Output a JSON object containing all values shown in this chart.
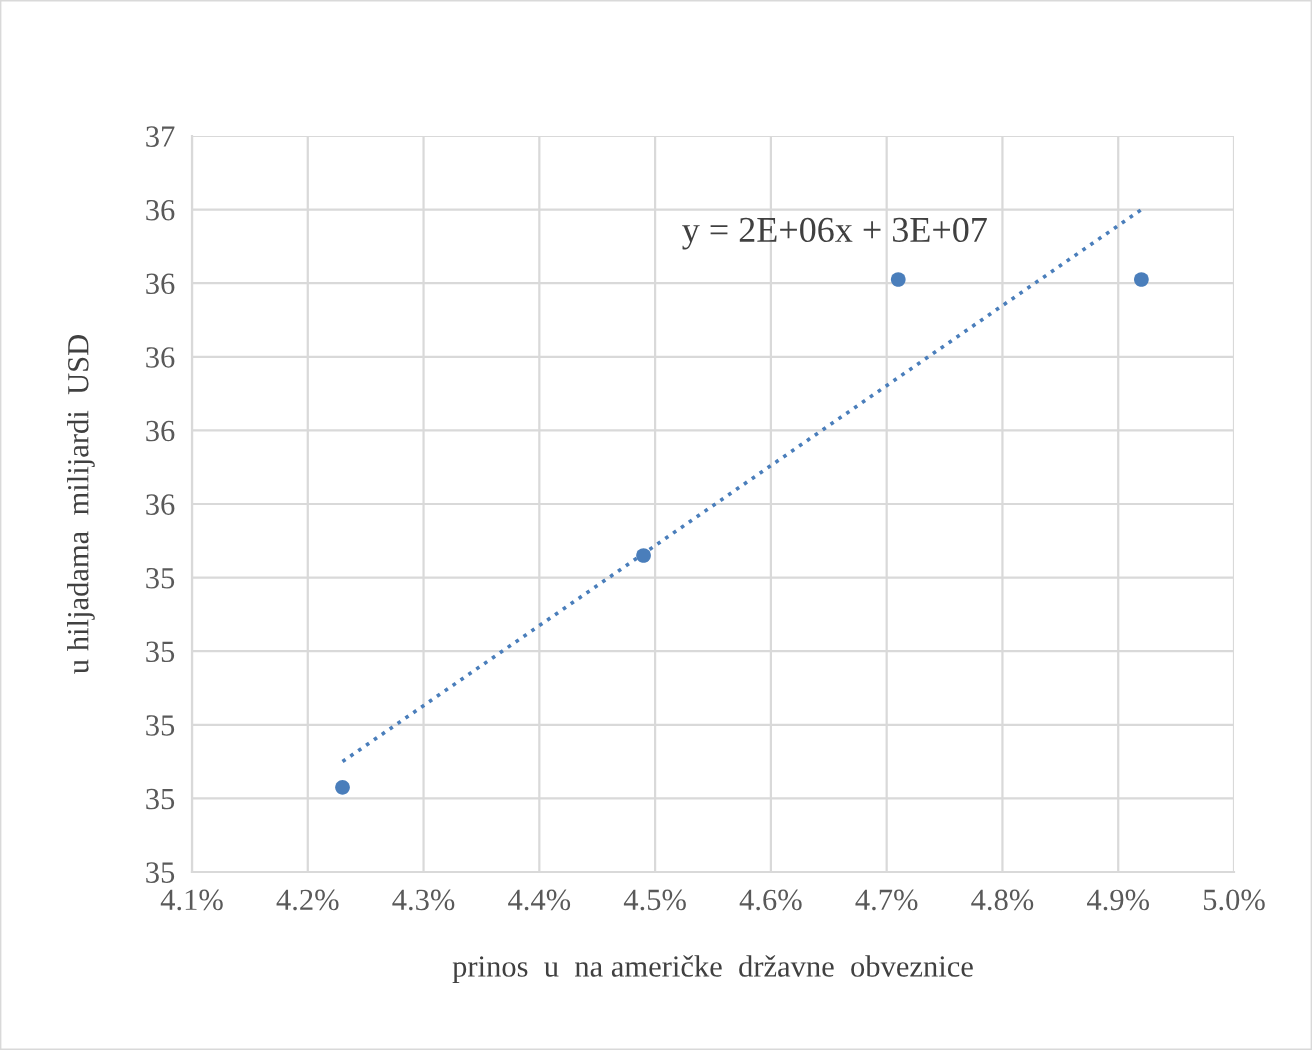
{
  "chart_data": {
    "type": "scatter",
    "xlabel": "prinos  u  na američke  državne  obveznice",
    "ylabel": "u hiljadama  milijardi  USD",
    "x": [
      4.23,
      4.49,
      4.71,
      4.92
    ],
    "series": [
      {
        "color": "#4a7ebb",
        "values": [
          34.83,
          35.46,
          36.21,
          36.21
        ]
      },
      {
        "type": "line",
        "color": "#4a7ebb",
        "line_style": "dotted",
        "marker": "none",
        "x": [
          4.23,
          4.92
        ],
        "values": [
          34.9,
          36.4
        ]
      }
    ],
    "annotations": [
      "y = 2E+06x + 3E+07"
    ],
    "xlim": [
      4.1,
      5.0
    ],
    "xticks": [
      {
        "value": 4.1,
        "label": "4.1%"
      },
      {
        "value": 4.2,
        "label": "4.2%"
      },
      {
        "value": 4.3,
        "label": "4.3%"
      },
      {
        "value": 4.4,
        "label": "4.4%"
      },
      {
        "value": 4.5,
        "label": "4.5%"
      },
      {
        "value": 4.6,
        "label": "4.6%"
      },
      {
        "value": 4.7,
        "label": "4.7%"
      },
      {
        "value": 4.8,
        "label": "4.8%"
      },
      {
        "value": 4.9,
        "label": "4.9%"
      },
      {
        "value": 5.0,
        "label": "5.0%"
      }
    ],
    "ylim": [
      34.6,
      36.6
    ],
    "yticks": [
      {
        "value": 34.6,
        "label": "35"
      },
      {
        "value": 34.8,
        "label": "35"
      },
      {
        "value": 35.0,
        "label": "35"
      },
      {
        "value": 35.2,
        "label": "35"
      },
      {
        "value": 35.4,
        "label": "35"
      },
      {
        "value": 35.6,
        "label": "36"
      },
      {
        "value": 35.8,
        "label": "36"
      },
      {
        "value": 36.0,
        "label": "36"
      },
      {
        "value": 36.2,
        "label": "36"
      },
      {
        "value": 36.4,
        "label": "36"
      },
      {
        "value": 36.6,
        "label": "37"
      }
    ],
    "grid": true,
    "marker": "circle"
  }
}
